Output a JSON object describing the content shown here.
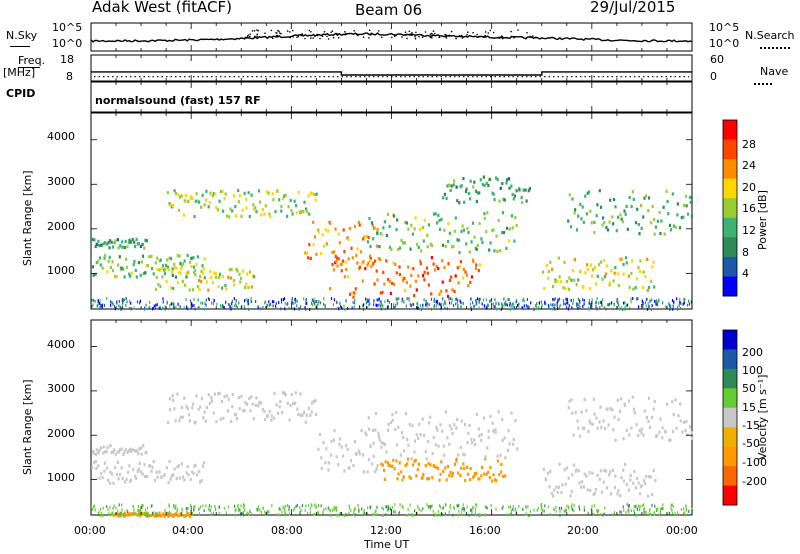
{
  "header": {
    "radar": "Adak West (fitACF)",
    "beam": "Beam 06",
    "date": "29/Jul/2015"
  },
  "noise_panel": {
    "left_label": "N.Sky",
    "right_label": "N.Search",
    "left_ticks": [
      "10^5",
      "10^0"
    ],
    "right_ticks": [
      "10^5",
      "10^0"
    ]
  },
  "freq_panel": {
    "left_label": "Freq.",
    "left_unit": "[MHz]",
    "right_label": "Nave",
    "left_ticks": [
      "18",
      "8"
    ],
    "right_ticks": [
      "60",
      "0"
    ],
    "freq_steps": [
      {
        "from_h": 0,
        "to_h": 10,
        "value": 11.5
      },
      {
        "from_h": 10,
        "to_h": 18,
        "value": 10.3
      },
      {
        "from_h": 18,
        "to_h": 24,
        "value": 11.5
      }
    ],
    "nave_level": 10
  },
  "cpid_panel": {
    "label": "CPID",
    "mode": "normalsound (fast) 157 RF"
  },
  "colors": {
    "power": [
      "#0000ff",
      "#1c5aa8",
      "#2e8b57",
      "#3cb371",
      "#9acd32",
      "#ffd700",
      "#ff8c00",
      "#ff4500",
      "#ff0000"
    ],
    "velocity": [
      "#ff0000",
      "#ff6600",
      "#ff9900",
      "#f0b000",
      "#c8c8c8",
      "#66cc33",
      "#2e8b57",
      "#1c5aa8",
      "#0000cc"
    ],
    "ground_scatter": "#c8c8c8"
  },
  "chart_data": [
    {
      "type": "heatmap",
      "name": "power",
      "ylabel": "Slant Range [km]",
      "yticks": [
        "1000",
        "2000",
        "3000",
        "4000"
      ],
      "ylim": [
        200,
        4600
      ],
      "xlim": [
        0,
        24
      ],
      "colorbar_label": "Power [dB]",
      "colorbar_ticks": [
        "4",
        "8",
        "12",
        "16",
        "20",
        "24",
        "28"
      ],
      "colorbar_range": [
        0,
        32
      ],
      "echo_bands": [
        {
          "t0": 0,
          "t1": 2.2,
          "r0": 1600,
          "r1": 1800,
          "level": 10
        },
        {
          "t0": 0,
          "t1": 4.5,
          "r0": 950,
          "r1": 1450,
          "level": 14
        },
        {
          "t0": 2.5,
          "t1": 6.5,
          "r0": 650,
          "r1": 1200,
          "level": 18
        },
        {
          "t0": 3.0,
          "t1": 9.0,
          "r0": 2300,
          "r1": 2900,
          "level": 16
        },
        {
          "t0": 8.5,
          "t1": 11.5,
          "r0": 1200,
          "r1": 2200,
          "level": 24
        },
        {
          "t0": 9.5,
          "t1": 15.5,
          "r0": 500,
          "r1": 1400,
          "level": 26
        },
        {
          "t0": 11.0,
          "t1": 17.0,
          "r0": 1500,
          "r1": 2400,
          "level": 14
        },
        {
          "t0": 14.0,
          "t1": 17.5,
          "r0": 2600,
          "r1": 3200,
          "level": 10
        },
        {
          "t0": 18.0,
          "t1": 22.5,
          "r0": 650,
          "r1": 1400,
          "level": 18
        },
        {
          "t0": 19.0,
          "t1": 24.0,
          "r0": 1900,
          "r1": 2900,
          "level": 12
        }
      ]
    },
    {
      "type": "heatmap",
      "name": "velocity",
      "ylabel": "Slant Range [km]",
      "yticks": [
        "1000",
        "2000",
        "3000",
        "4000"
      ],
      "ylim": [
        200,
        4600
      ],
      "xlim": [
        0,
        24
      ],
      "xticks": [
        "00:00",
        "04:00",
        "08:00",
        "12:00",
        "16:00",
        "20:00",
        "00:00"
      ],
      "xlabel": "Time UT",
      "colorbar_label": "Velocity [m s⁻¹]",
      "colorbar_ticks": [
        "-200",
        "-100",
        "-50",
        "-15",
        "15",
        "50",
        "100",
        "200"
      ],
      "echo_bands": [
        {
          "t0": 0,
          "t1": 2.2,
          "r0": 1600,
          "r1": 1800,
          "vel": 0
        },
        {
          "t0": 0,
          "t1": 4.5,
          "r0": 950,
          "r1": 1450,
          "vel": 0
        },
        {
          "t0": 3.0,
          "t1": 9.0,
          "r0": 2300,
          "r1": 3000,
          "vel": 0
        },
        {
          "t0": 9.0,
          "t1": 11.5,
          "r0": 1200,
          "r1": 2200,
          "vel": 0
        },
        {
          "t0": 11.5,
          "t1": 16.5,
          "r0": 1000,
          "r1": 1500,
          "vel": -40
        },
        {
          "t0": 11.0,
          "t1": 17.0,
          "r0": 1500,
          "r1": 2600,
          "vel": 0
        },
        {
          "t0": 18.0,
          "t1": 22.5,
          "r0": 650,
          "r1": 1400,
          "vel": 0
        },
        {
          "t0": 19.0,
          "t1": 24.0,
          "r0": 1900,
          "r1": 2900,
          "vel": 0
        },
        {
          "t0": 0.8,
          "t1": 4.0,
          "r0": 200,
          "r1": 280,
          "vel": -40
        }
      ]
    }
  ]
}
